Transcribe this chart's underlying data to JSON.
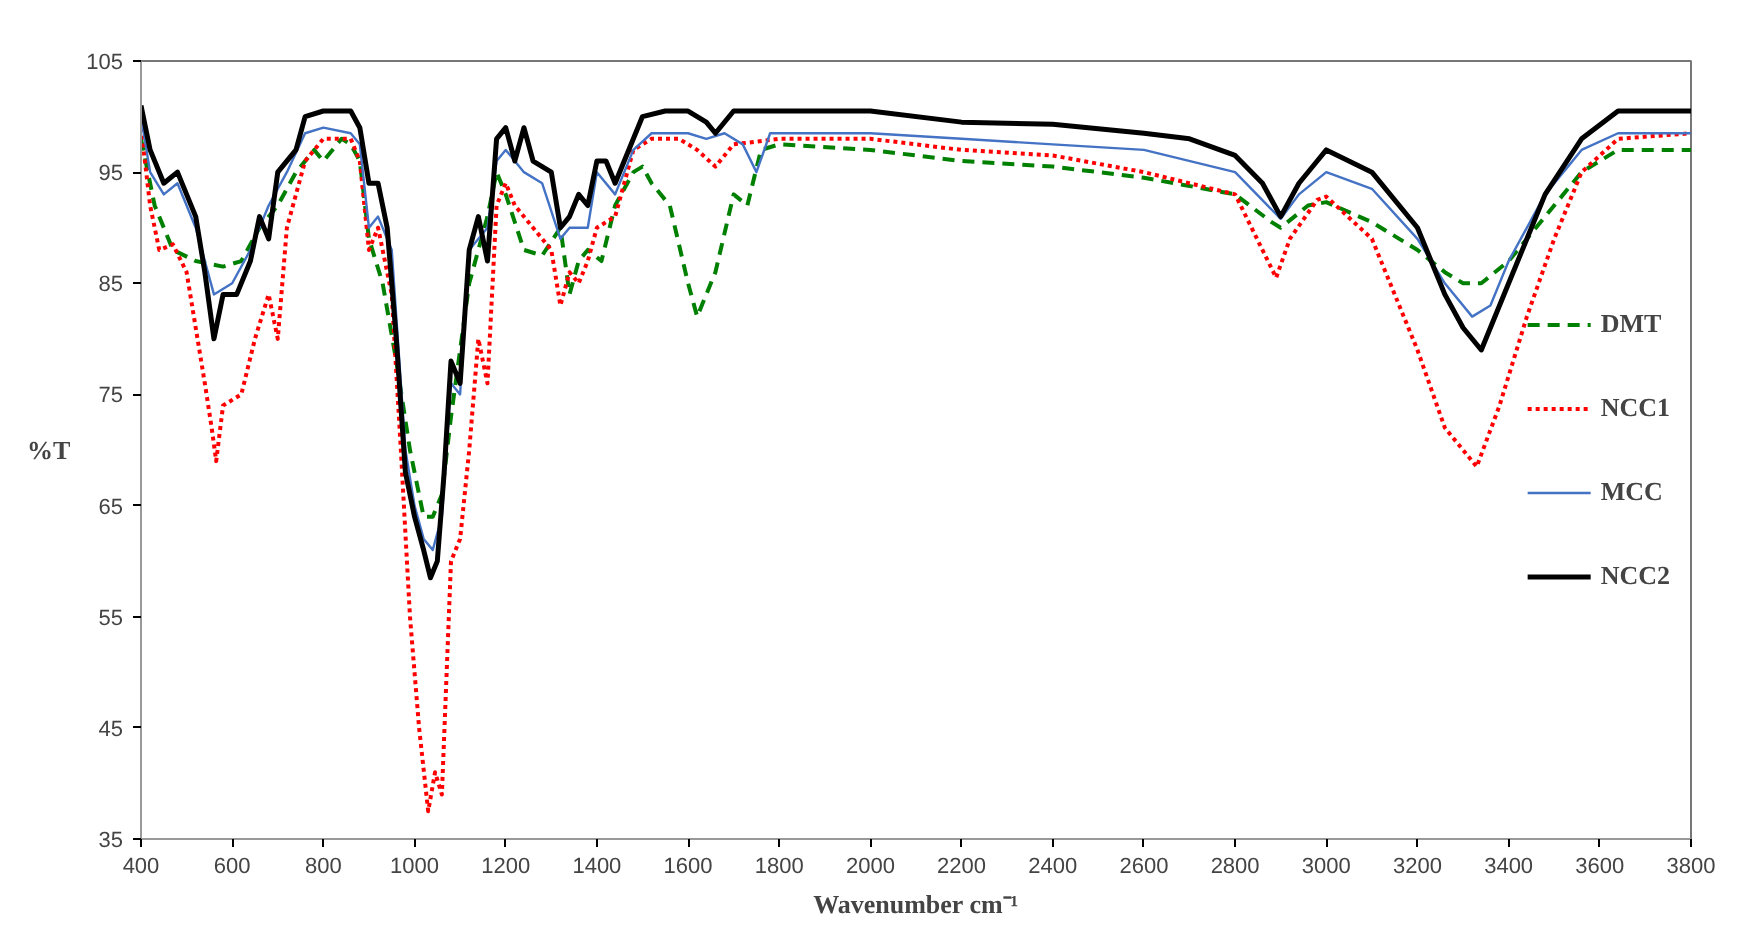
{
  "chart_data": {
    "type": "line",
    "xlabel": "Wavenumber cm⁻¹",
    "ylabel": "%T",
    "xlim": [
      400,
      3800
    ],
    "xticks": [
      400,
      600,
      800,
      1000,
      1200,
      1400,
      1600,
      1800,
      2000,
      2200,
      2400,
      2600,
      2800,
      3000,
      3200,
      3400,
      3600,
      3800
    ],
    "ylim": [
      35,
      105
    ],
    "yticks": [
      35,
      45,
      55,
      65,
      75,
      85,
      95,
      105
    ],
    "grid": false,
    "legend": "center right",
    "marker": "none",
    "series": [
      {
        "name": "DMT",
        "color": "#008000",
        "line_style": "dashed",
        "x": [
          400,
          430,
          470,
          520,
          580,
          620,
          660,
          700,
          740,
          780,
          800,
          840,
          860,
          880,
          900,
          930,
          960,
          990,
          1020,
          1040,
          1060,
          1080,
          1120,
          1160,
          1180,
          1200,
          1240,
          1280,
          1320,
          1340,
          1360,
          1380,
          1410,
          1440,
          1480,
          1500,
          1520,
          1560,
          1600,
          1620,
          1660,
          1700,
          1730,
          1760,
          1800,
          2000,
          2200,
          2400,
          2600,
          2800,
          2880,
          2900,
          2960,
          3000,
          3100,
          3200,
          3260,
          3300,
          3340,
          3400,
          3480,
          3560,
          3640,
          3800
        ],
        "values": [
          98,
          92,
          88,
          87,
          86.5,
          87,
          90,
          92,
          95,
          97,
          96,
          98,
          97.5,
          96,
          89,
          85,
          78,
          70,
          64,
          64,
          66,
          73,
          85,
          91,
          95,
          93,
          88,
          87.5,
          90,
          84,
          87,
          88,
          87,
          92,
          95,
          95.5,
          94,
          92,
          85,
          82,
          86,
          93,
          92,
          97,
          97.5,
          97,
          96,
          95.5,
          94.5,
          93,
          90.5,
          90,
          92,
          92.3,
          90.5,
          88,
          86,
          85,
          85,
          87,
          91,
          95,
          97,
          97
        ]
      },
      {
        "name": "NCC1",
        "color": "#ff0000",
        "line_style": "dotted",
        "x": [
          400,
          420,
          440,
          470,
          500,
          520,
          540,
          555,
          565,
          580,
          620,
          650,
          680,
          700,
          720,
          760,
          800,
          860,
          880,
          900,
          920,
          950,
          970,
          990,
          1010,
          1030,
          1045,
          1060,
          1080,
          1100,
          1120,
          1140,
          1160,
          1180,
          1200,
          1220,
          1260,
          1300,
          1320,
          1340,
          1360,
          1380,
          1400,
          1440,
          1480,
          1520,
          1580,
          1620,
          1660,
          1700,
          1800,
          2000,
          2200,
          2400,
          2600,
          2800,
          2860,
          2890,
          2920,
          2980,
          3000,
          3100,
          3200,
          3260,
          3300,
          3330,
          3380,
          3440,
          3500,
          3560,
          3640,
          3800
        ],
        "values": [
          99,
          92,
          88,
          88.5,
          86,
          81,
          76,
          72,
          69,
          74,
          75,
          80,
          84,
          80,
          90,
          96,
          98,
          98,
          96,
          88,
          90,
          84,
          70,
          55,
          45,
          37.5,
          41,
          39,
          60,
          62,
          70,
          80,
          76,
          92,
          94,
          92,
          90,
          88,
          83,
          86,
          85,
          87,
          90,
          91,
          97,
          98,
          98,
          97,
          95.5,
          97.5,
          98,
          98,
          97,
          96.5,
          95,
          93,
          88,
          85.5,
          89,
          92.5,
          92.8,
          89,
          79,
          72,
          70,
          68.5,
          74,
          82,
          89,
          95,
          98,
          98.5
        ]
      },
      {
        "name": "MCC",
        "color": "#4472c4",
        "line_style": "solid",
        "x": [
          400,
          420,
          450,
          480,
          520,
          540,
          560,
          600,
          640,
          680,
          720,
          760,
          800,
          860,
          880,
          900,
          920,
          950,
          980,
          1000,
          1020,
          1040,
          1060,
          1080,
          1100,
          1120,
          1160,
          1180,
          1200,
          1240,
          1280,
          1320,
          1340,
          1380,
          1400,
          1440,
          1480,
          1520,
          1600,
          1640,
          1680,
          1720,
          1750,
          1780,
          1900,
          2000,
          2200,
          2400,
          2600,
          2800,
          2900,
          2940,
          3000,
          3100,
          3200,
          3260,
          3320,
          3360,
          3400,
          3480,
          3560,
          3640,
          3800
        ],
        "values": [
          100,
          95,
          93,
          94,
          90,
          87,
          84,
          85,
          88,
          92,
          95,
          98.5,
          99,
          98.5,
          97.5,
          90,
          91,
          88,
          70,
          65,
          62,
          61,
          64,
          76,
          75,
          88,
          90,
          96,
          97,
          95,
          94,
          89,
          90,
          90,
          95,
          93,
          97,
          98.5,
          98.5,
          98,
          98.5,
          97.5,
          95,
          98.5,
          98.5,
          98.5,
          98,
          97.5,
          97,
          95,
          90.8,
          93,
          95,
          93.5,
          89,
          85,
          82,
          83,
          87,
          93,
          97,
          98.5,
          98.5
        ]
      },
      {
        "name": "NCC2",
        "color": "#000000",
        "line_style": "solid",
        "x": [
          400,
          420,
          450,
          480,
          520,
          540,
          560,
          580,
          610,
          640,
          660,
          680,
          700,
          740,
          760,
          800,
          860,
          880,
          900,
          920,
          940,
          960,
          980,
          1000,
          1020,
          1035,
          1050,
          1065,
          1080,
          1100,
          1120,
          1140,
          1160,
          1180,
          1200,
          1220,
          1240,
          1260,
          1300,
          1320,
          1340,
          1360,
          1380,
          1400,
          1420,
          1440,
          1460,
          1500,
          1550,
          1600,
          1640,
          1660,
          1700,
          1800,
          2000,
          2200,
          2400,
          2600,
          2700,
          2800,
          2860,
          2900,
          2940,
          2980,
          3000,
          3100,
          3200,
          3260,
          3300,
          3340,
          3400,
          3480,
          3560,
          3640,
          3800
        ],
        "values": [
          101,
          97,
          94,
          95,
          91,
          86,
          80,
          84,
          84,
          87,
          91,
          89,
          95,
          97,
          100,
          100.5,
          100.5,
          99,
          94,
          94,
          90,
          80,
          68,
          64,
          61,
          58.5,
          60,
          68,
          78,
          76,
          88,
          91,
          87,
          98,
          99,
          96,
          99,
          96,
          95,
          90,
          91,
          93,
          92,
          96,
          96,
          94,
          96,
          100,
          100.5,
          100.5,
          99.5,
          98.5,
          100.5,
          100.5,
          100.5,
          99.5,
          99.3,
          98.5,
          98,
          96.5,
          94,
          91,
          94,
          96,
          97,
          95,
          90,
          84,
          81,
          79,
          85,
          93,
          98,
          100.5,
          100.5
        ]
      }
    ]
  }
}
